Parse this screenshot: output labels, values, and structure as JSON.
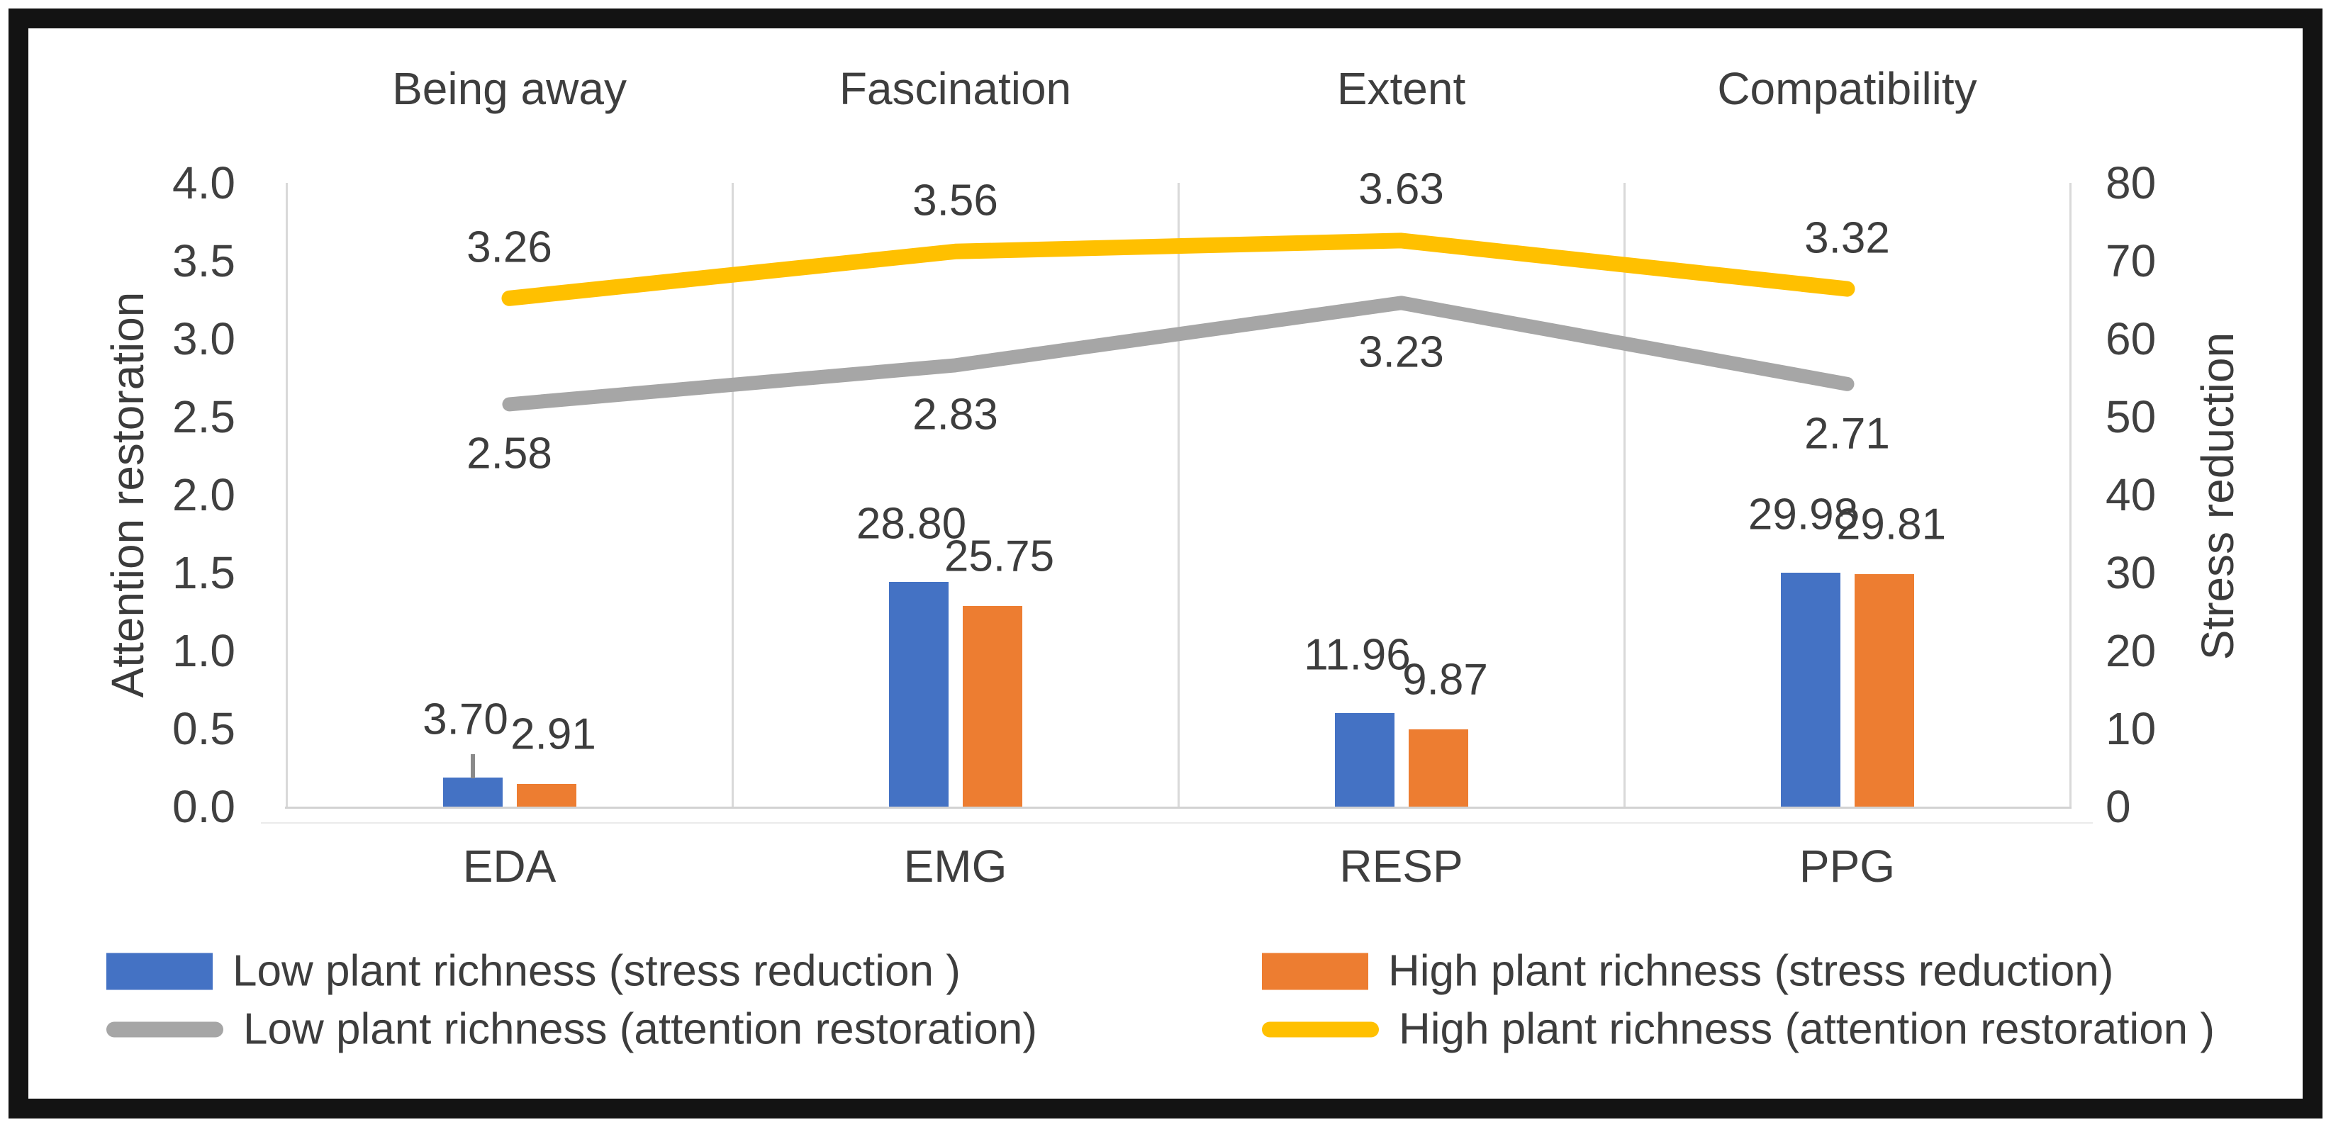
{
  "chart_data": {
    "type": "combo-bar-line",
    "categories": [
      "EDA",
      "EMG",
      "RESP",
      "PPG"
    ],
    "construct_labels": [
      "Being away",
      "Fascination",
      "Extent",
      "Compatibility"
    ],
    "left_axis": {
      "title": "Attention restoration",
      "min": 0,
      "max": 4,
      "ticks": [
        "4.0",
        "3.5",
        "3.0",
        "2.5",
        "2.0",
        "1.5",
        "1.0",
        "0.5",
        "0.0"
      ]
    },
    "right_axis": {
      "title": "Stress reduction",
      "min": 0,
      "max": 80,
      "ticks": [
        "80",
        "70",
        "60",
        "50",
        "40",
        "30",
        "20",
        "10",
        "0"
      ]
    },
    "bar_series": [
      {
        "name": "Low plant richness (stress reduction )",
        "color": "#4472C4",
        "axis": "right",
        "values": [
          3.7,
          28.8,
          11.96,
          29.98
        ],
        "value_labels": [
          "3.70",
          "28.80",
          "11.96",
          "29.98"
        ]
      },
      {
        "name": "High plant richness (stress reduction)",
        "color": "#ED7D31",
        "axis": "right",
        "values": [
          2.91,
          25.75,
          9.87,
          29.81
        ],
        "value_labels": [
          "2.91",
          "25.75",
          "9.87",
          "29.81"
        ]
      }
    ],
    "line_series": [
      {
        "name": "Low plant richness (attention restoration)",
        "color": "#A6A6A6",
        "axis": "left",
        "label_side": "below",
        "values": [
          2.58,
          2.83,
          3.23,
          2.71
        ],
        "value_labels": [
          "2.58",
          "2.83",
          "3.23",
          "2.71"
        ]
      },
      {
        "name": "High plant richness (attention restoration )",
        "color": "#FFC000",
        "axis": "left",
        "label_side": "above",
        "values": [
          3.26,
          3.56,
          3.63,
          3.32
        ],
        "value_labels": [
          "3.26",
          "3.56",
          "3.63",
          "3.32"
        ]
      }
    ],
    "grid": {
      "vertical": true,
      "horizontal": false
    },
    "legend_position": "bottom"
  }
}
